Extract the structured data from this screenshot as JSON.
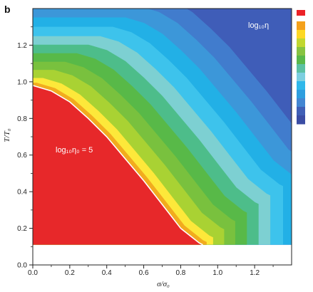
{
  "panel_label": "b",
  "colors": {
    "bands": [
      "#e7282a",
      "#f2ab1e",
      "#fde83a",
      "#a9d233",
      "#79c13e",
      "#58b948",
      "#4dbd8a",
      "#7dd0d2",
      "#3dc3ec",
      "#22b0e6",
      "#3c97d9",
      "#417ccd",
      "#3f5db8"
    ],
    "colorbar": [
      "#ec2227",
      "#f4a11b",
      "#fdd823",
      "#c1d72f",
      "#87c341",
      "#59b84a",
      "#5bc1a3",
      "#7ccfe0",
      "#2fb8ea",
      "#2e9edf",
      "#4386d2",
      "#405fb6",
      "#3b4da4"
    ],
    "boundary": "#ffffff"
  },
  "chart_data": {
    "type": "heatmap",
    "xlabel": "σ/σ₀",
    "ylabel": "T/T₀",
    "xlim": [
      0,
      1.4
    ],
    "ylim": [
      0,
      1.4
    ],
    "xticks": [
      0.0,
      0.2,
      0.4,
      0.6,
      0.8,
      1.0,
      1.2
    ],
    "yticks": [
      0.0,
      0.2,
      0.4,
      0.6,
      0.8,
      1.0,
      1.2
    ],
    "xticks_text": [
      "0.0",
      "0.2",
      "0.4",
      "0.6",
      "0.8",
      "1.0",
      "1.2"
    ],
    "yticks_text": [
      "0.0",
      "0.2",
      "0.4",
      "0.6",
      "0.8",
      "1.0",
      "1.2"
    ],
    "data_ymin": 0.11,
    "grid": false,
    "colorbar_label": "log₁₀η",
    "annotation": "log₁₀η₀ = 5",
    "contour_levels": 13,
    "boundary": {
      "x": [
        0.0,
        0.1,
        0.2,
        0.3,
        0.4,
        0.5,
        0.6,
        0.7,
        0.8,
        0.9,
        0.92
      ],
      "y": [
        0.98,
        0.95,
        0.89,
        0.8,
        0.7,
        0.58,
        0.46,
        0.33,
        0.2,
        0.12,
        0.11
      ]
    },
    "band_step": [
      0.018,
      0.03,
      0.052,
      0.052,
      0.055,
      0.055,
      0.055,
      0.06,
      0.06,
      0.07,
      0.07,
      0.09
    ]
  }
}
